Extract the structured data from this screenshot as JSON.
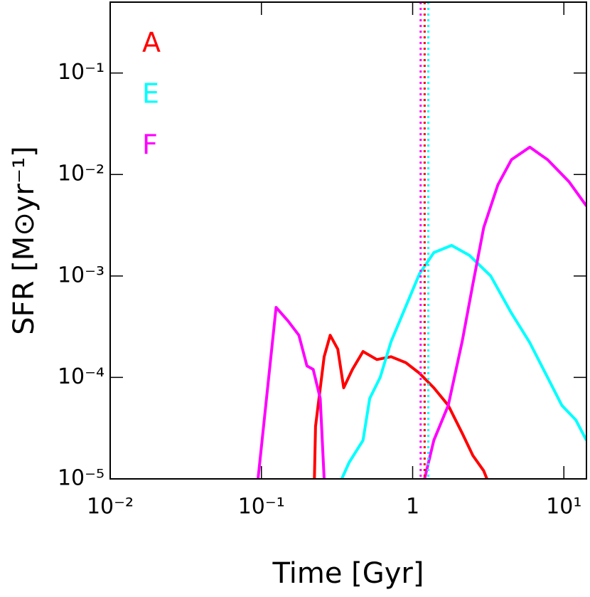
{
  "chart_data": {
    "type": "line",
    "xlabel": "Time [Gyr]",
    "ylabel": "SFR [M⊙yr⁻¹]",
    "xscale": "log",
    "yscale": "log",
    "xlim": [
      0.01,
      14.1
    ],
    "ylim": [
      1e-05,
      0.5
    ],
    "xticks": [
      {
        "value": 0.01,
        "label": "10⁻²"
      },
      {
        "value": 0.1,
        "label": "10⁻¹"
      },
      1,
      {
        "value": 10,
        "label": "10¹"
      }
    ],
    "yticks": [
      {
        "value": 1e-05,
        "label": "10⁻⁵"
      },
      {
        "value": 0.0001,
        "label": "10⁻⁴"
      },
      {
        "value": 0.001,
        "label": "10⁻³"
      },
      {
        "value": 0.01,
        "label": "10⁻²"
      },
      {
        "value": 0.1,
        "label": "10⁻¹"
      }
    ],
    "series": [
      {
        "name": "A",
        "color": "#ff0000",
        "x": [
          0.224,
          0.228,
          0.26,
          0.285,
          0.32,
          0.35,
          0.4,
          0.47,
          0.58,
          0.72,
          0.9,
          1.11,
          1.38,
          1.72,
          2.13,
          2.5,
          2.95,
          3.1
        ],
        "values": [
          1e-05,
          3.3e-05,
          0.00016,
          0.00026,
          0.00019,
          7.9e-05,
          0.00012,
          0.00018,
          0.00015,
          0.00016,
          0.00014,
          0.00011,
          7.9e-05,
          5.3e-05,
          2.8e-05,
          1.7e-05,
          1.2e-05,
          1e-05
        ]
      },
      {
        "name": "E",
        "color": "#00ffff",
        "x": [
          0.34,
          0.38,
          0.47,
          0.52,
          0.61,
          0.72,
          0.9,
          1.11,
          1.38,
          1.81,
          2.37,
          3.28,
          4.5,
          5.95,
          7.8,
          9.7,
          12,
          14.1
        ],
        "values": [
          1e-05,
          1.45e-05,
          2.4e-05,
          6.2e-05,
          0.0001,
          0.000225,
          0.0005,
          0.00105,
          0.0017,
          0.002,
          0.0016,
          0.001,
          0.00043,
          0.00022,
          0.0001,
          5.3e-05,
          3.8e-05,
          2.4e-05
        ]
      },
      {
        "name": "F",
        "color": "#ff00ff",
        "x": [
          0.095,
          0.125,
          0.15,
          0.177,
          0.2,
          0.22,
          0.245,
          0.26,
          null,
          1.2,
          1.38,
          1.72,
          2.13,
          2.5,
          2.95,
          3.66,
          4.5,
          5.95,
          7.8,
          10.8,
          14.1
        ],
        "values": [
          1e-05,
          0.00049,
          0.00036,
          0.00026,
          0.00013,
          0.00012,
          6.2e-05,
          1e-05,
          null,
          1e-05,
          2.4e-05,
          5.3e-05,
          0.00023,
          0.00083,
          0.003,
          0.0079,
          0.014,
          0.0186,
          0.014,
          0.0085,
          0.0049
        ]
      }
    ],
    "vlines": [
      {
        "x": 1.13,
        "color": "#ff00ff"
      },
      {
        "x": 1.2,
        "color": "#ff0000"
      },
      {
        "x": 1.27,
        "color": "#00ffff"
      }
    ]
  }
}
